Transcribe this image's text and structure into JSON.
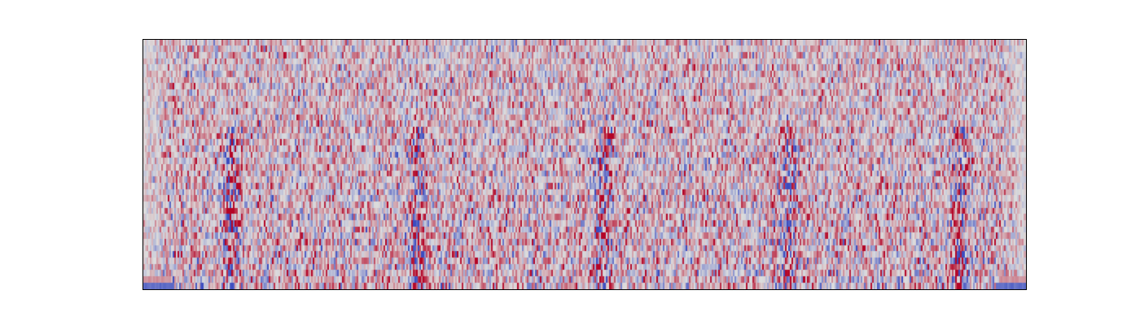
{
  "chart_data": {
    "type": "heatmap",
    "title": "",
    "xlabel": "",
    "ylabel": "",
    "colormap": "coolwarm",
    "colors": {
      "low": "#3b4cc0",
      "mid": "#dddddd",
      "high": "#b40426"
    },
    "value_range": [
      -1,
      1
    ],
    "axes_visible": false,
    "grid": false,
    "legend": "none",
    "n_rows": 40,
    "n_cols": 540,
    "bursts": [
      {
        "center": 0.1,
        "width": 0.018
      },
      {
        "center": 0.31,
        "width": 0.018
      },
      {
        "center": 0.52,
        "width": 0.018
      },
      {
        "center": 0.73,
        "width": 0.018
      },
      {
        "center": 0.925,
        "width": 0.018
      }
    ],
    "edge_low_rows": {
      "left": {
        "row_from_bottom": 0,
        "value": -0.9
      },
      "right": {
        "row_from_bottom": 0,
        "value": -0.9
      }
    }
  }
}
